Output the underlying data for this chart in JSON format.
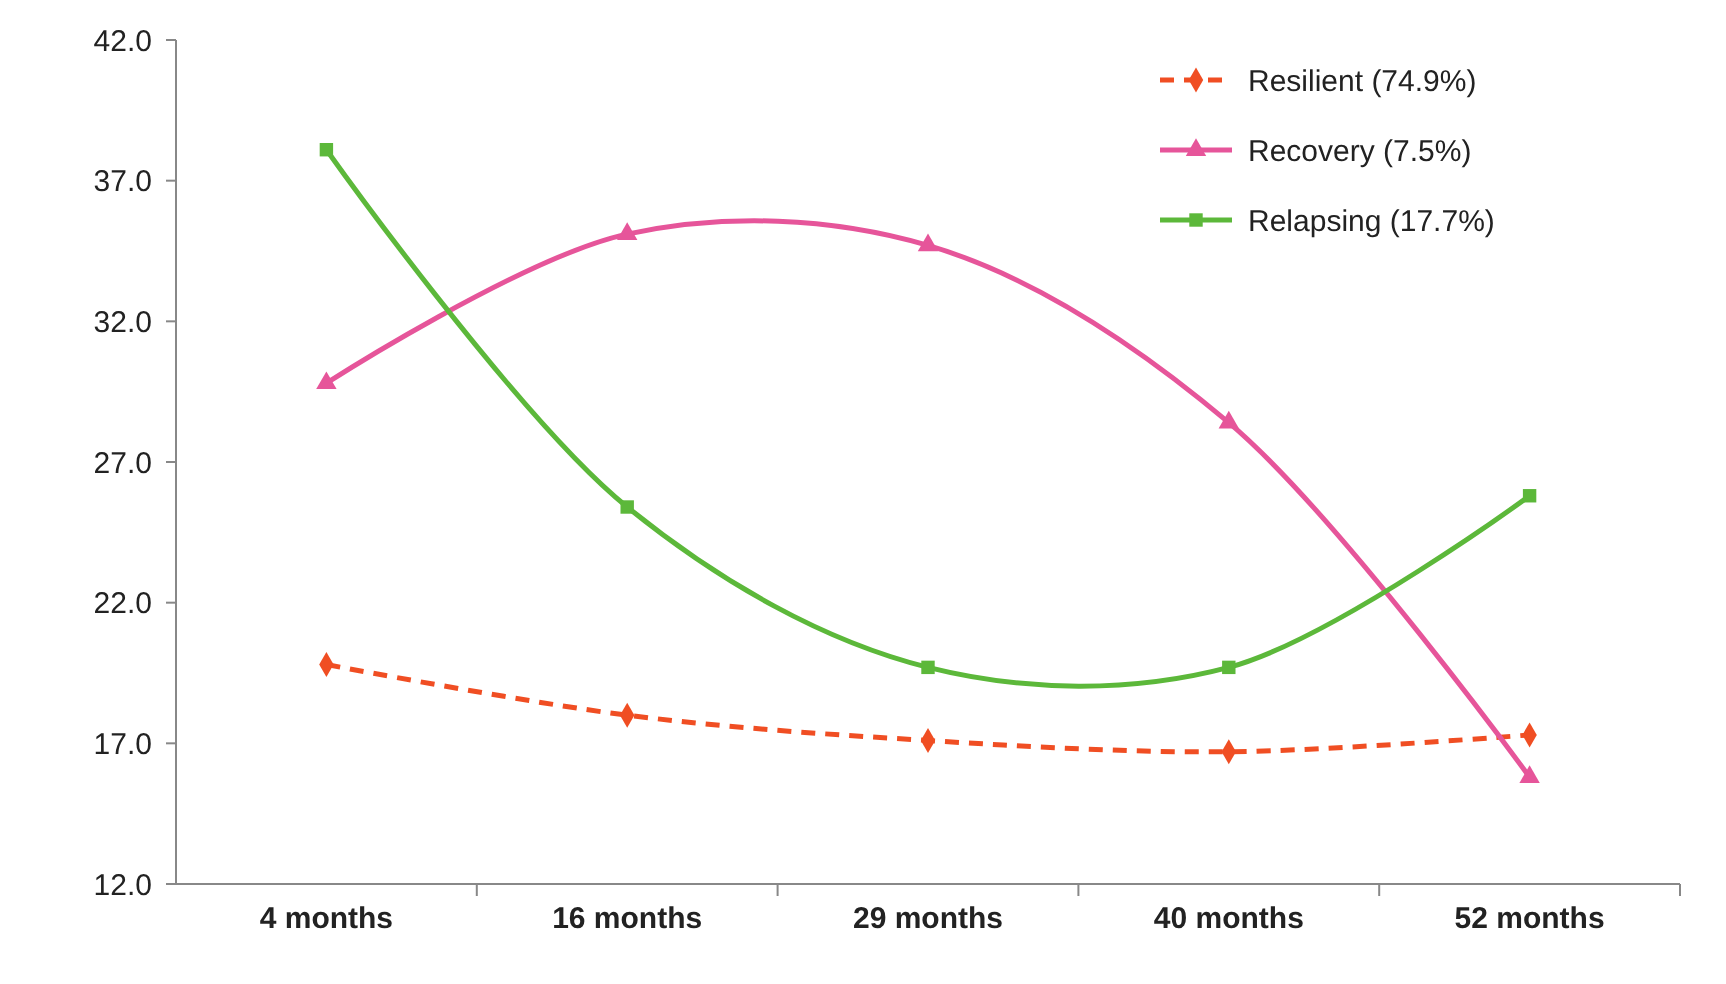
{
  "chart_data": {
    "type": "line",
    "categories": [
      "4 months",
      "16 months",
      "29 months",
      "40 months",
      "52 months"
    ],
    "ylim": [
      12,
      42
    ],
    "yticks": [
      {
        "value": 12,
        "label": "12.0"
      },
      {
        "value": 17,
        "label": "17.0"
      },
      {
        "value": 22,
        "label": "22.0"
      },
      {
        "value": 27,
        "label": "27.0"
      },
      {
        "value": 32,
        "label": "32.0"
      },
      {
        "value": 37,
        "label": "37.0"
      },
      {
        "value": 42,
        "label": "42.0"
      }
    ],
    "grid": false,
    "legend": "top right",
    "series": [
      {
        "name": "Resilient (74.9%)",
        "color": "#f04e23",
        "values": [
          19.8,
          18.0,
          17.1,
          16.7,
          17.3
        ],
        "marker": "diamond",
        "line_style": "dashed"
      },
      {
        "name": "Recovery (7.5%)",
        "color": "#e6559a",
        "values": [
          29.8,
          35.1,
          34.7,
          28.4,
          15.8
        ],
        "marker": "triangle",
        "line_style": "solid"
      },
      {
        "name": "Relapsing (17.7%)",
        "color": "#5cb83a",
        "values": [
          38.1,
          25.4,
          19.7,
          19.7,
          25.8
        ],
        "marker": "square",
        "line_style": "solid"
      }
    ]
  }
}
